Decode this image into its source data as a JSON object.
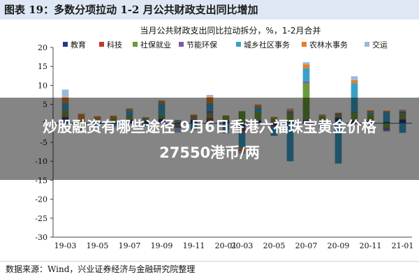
{
  "header": {
    "title": "图表 19：多数分项拉动 1-2 月公共财政支出同比增加"
  },
  "overlay": {
    "line1": "炒股融资有哪些途径 9月6日香港六福珠宝黄金价格",
    "line2": "27550港币/两"
  },
  "footer": {
    "source": "数据来源：Wind，兴业证券经济与金融研究院整理"
  },
  "colors": {
    "header_bg": "#dde8f4",
    "education": "#1f3c88",
    "science": "#c0392b",
    "social": "#6a9a3a",
    "energy": "#7b5aa6",
    "community": "#3aa0c8",
    "agriculture": "#e67e22",
    "transport": "#9db8dc"
  },
  "chart_data": {
    "type": "bar",
    "stacked": true,
    "title": "当月公共财政支出同比拉动拆分，%，1-2月合并",
    "ylim": [
      -30,
      20
    ],
    "yticks": [
      20,
      15,
      10,
      5,
      0,
      -5,
      -10,
      -15,
      -20,
      -25,
      -30
    ],
    "xticks_shown": [
      "19-03",
      "19-05",
      "19-07",
      "19-09",
      "19-11",
      "20-01",
      "20-03",
      "20-05",
      "20-07",
      "20-09",
      "20-11",
      "21-01"
    ],
    "categories": [
      "19-03",
      "19-04",
      "19-05",
      "19-06",
      "19-07",
      "19-08",
      "19-09",
      "19-10",
      "19-11",
      "19-12",
      "20-01",
      "20-03",
      "20-04",
      "20-05",
      "20-06",
      "20-07",
      "20-08",
      "20-09",
      "20-10",
      "20-11",
      "20-12",
      "21-01"
    ],
    "legend_position": "top",
    "series": [
      {
        "name": "教育",
        "color_key": "education",
        "values": [
          1.5,
          -0.3,
          0.6,
          0.4,
          0.9,
          0.5,
          1.2,
          -0.2,
          0.9,
          0.8,
          0.6,
          -1.5,
          0.7,
          -0.6,
          0.4,
          0.9,
          0.3,
          1.5,
          0.8,
          0.5,
          0.4,
          1.0
        ]
      },
      {
        "name": "科技",
        "color_key": "science",
        "values": [
          0.3,
          0.2,
          0.1,
          0.0,
          0.2,
          0.2,
          0.2,
          0.2,
          0.2,
          0.7,
          0.1,
          -0.6,
          -0.2,
          -0.3,
          0.2,
          0.1,
          0.3,
          0.1,
          -0.2,
          0.3,
          0.0,
          0.2
        ]
      },
      {
        "name": "社保就业",
        "color_key": "social",
        "values": [
          1.6,
          -1.5,
          0.2,
          1.0,
          0.8,
          0.6,
          0.8,
          -0.4,
          0.6,
          1.1,
          1.2,
          3.2,
          2.2,
          1.3,
          2.0,
          9.5,
          1.2,
          0.7,
          2.0,
          1.5,
          -1.2,
          1.4
        ]
      },
      {
        "name": "节能环保",
        "color_key": "energy",
        "values": [
          0.2,
          0.0,
          0.1,
          -0.2,
          0.0,
          0.1,
          0.0,
          -0.6,
          0.2,
          0.7,
          -0.2,
          -0.5,
          -0.3,
          -0.2,
          0.4,
          0.5,
          -0.5,
          0.3,
          0.3,
          -0.3,
          -0.7,
          0.4
        ]
      },
      {
        "name": "城乡社区事务",
        "color_key": "community",
        "values": [
          1.8,
          0.4,
          -0.8,
          -0.4,
          1.5,
          -0.5,
          3.0,
          0.5,
          -1.5,
          2.0,
          -1.5,
          -4.0,
          1.2,
          -2.2,
          -10.0,
          3.5,
          -0.8,
          -10.5,
          7.5,
          0.5,
          2.5,
          -2.5
        ]
      },
      {
        "name": "农林水事务",
        "color_key": "agriculture",
        "values": [
          1.5,
          1.8,
          0.8,
          0.6,
          0.5,
          0.2,
          0.7,
          0.2,
          0.4,
          1.7,
          0.2,
          -0.8,
          0.7,
          0.4,
          0.4,
          1.0,
          0.3,
          0.2,
          0.8,
          0.6,
          0.4,
          0.3
        ]
      },
      {
        "name": "交运",
        "color_key": "transport",
        "values": [
          2.0,
          0.2,
          0.1,
          -0.5,
          -0.3,
          -0.4,
          0.2,
          -1.2,
          -0.3,
          0.5,
          -1.0,
          -0.6,
          0.2,
          0.0,
          0.5,
          0.6,
          0.3,
          -0.2,
          1.0,
          -0.4,
          -0.3,
          0.3
        ]
      }
    ]
  }
}
